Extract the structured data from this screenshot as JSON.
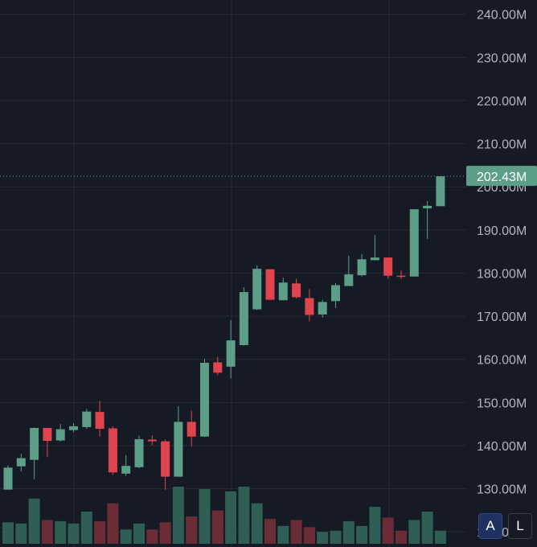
{
  "chart_data": {
    "type": "candlestick",
    "y_axis": {
      "ticks": [
        "120.00M",
        "130.00M",
        "140.00M",
        "150.00M",
        "160.00M",
        "170.00M",
        "180.00M",
        "190.00M",
        "200.00M",
        "210.00M",
        "220.00M",
        "230.00M",
        "240.00M"
      ],
      "ylim": [
        116.5,
        243.3
      ],
      "unit": "M"
    },
    "last_price_label": "202.43M",
    "last_price": 202.43,
    "colors": {
      "up": "#5c9e87",
      "down": "#e0454f",
      "up_volume": "#2f5e55",
      "down_volume": "#6a2d38",
      "background": "#161a25",
      "grid": "#262a35",
      "last_price_line": "#5c9e87"
    },
    "candles": [
      {
        "o": 129.8,
        "h": 135.4,
        "l": 129.8,
        "c": 134.9
      },
      {
        "o": 135.2,
        "h": 138.1,
        "l": 134.0,
        "c": 137.1
      },
      {
        "o": 136.7,
        "h": 144.2,
        "l": 132.2,
        "c": 144.1
      },
      {
        "o": 144.1,
        "h": 144.1,
        "l": 137.4,
        "c": 141.1
      },
      {
        "o": 141.2,
        "h": 145.0,
        "l": 140.9,
        "c": 143.8
      },
      {
        "o": 143.6,
        "h": 145.2,
        "l": 143.1,
        "c": 144.5
      },
      {
        "o": 144.3,
        "h": 148.5,
        "l": 143.9,
        "c": 147.9
      },
      {
        "o": 147.8,
        "h": 150.4,
        "l": 142.1,
        "c": 143.9
      },
      {
        "o": 144.0,
        "h": 144.5,
        "l": 133.2,
        "c": 133.8
      },
      {
        "o": 133.5,
        "h": 137.8,
        "l": 133.0,
        "c": 135.3
      },
      {
        "o": 135.0,
        "h": 142.3,
        "l": 134.8,
        "c": 141.5
      },
      {
        "o": 141.4,
        "h": 142.4,
        "l": 140.1,
        "c": 141.0
      },
      {
        "o": 141.0,
        "h": 141.4,
        "l": 129.8,
        "c": 132.8
      },
      {
        "o": 132.8,
        "h": 149.1,
        "l": 132.8,
        "c": 145.5
      },
      {
        "o": 145.5,
        "h": 148.1,
        "l": 139.8,
        "c": 142.1
      },
      {
        "o": 142.1,
        "h": 160.1,
        "l": 142.0,
        "c": 159.2
      },
      {
        "o": 159.3,
        "h": 160.6,
        "l": 156.3,
        "c": 156.9
      },
      {
        "o": 158.3,
        "h": 169.1,
        "l": 155.6,
        "c": 164.4
      },
      {
        "o": 163.3,
        "h": 176.7,
        "l": 163.2,
        "c": 175.6
      },
      {
        "o": 171.6,
        "h": 181.8,
        "l": 171.4,
        "c": 181.0
      },
      {
        "o": 180.9,
        "h": 180.9,
        "l": 173.8,
        "c": 173.8
      },
      {
        "o": 173.7,
        "h": 178.9,
        "l": 173.7,
        "c": 177.8
      },
      {
        "o": 177.6,
        "h": 178.7,
        "l": 174.1,
        "c": 174.4
      },
      {
        "o": 174.2,
        "h": 176.3,
        "l": 168.8,
        "c": 170.3
      },
      {
        "o": 170.4,
        "h": 173.8,
        "l": 169.7,
        "c": 173.3
      },
      {
        "o": 173.5,
        "h": 177.7,
        "l": 171.9,
        "c": 177.2
      },
      {
        "o": 177.0,
        "h": 184.0,
        "l": 177.0,
        "c": 179.7
      },
      {
        "o": 179.5,
        "h": 184.4,
        "l": 179.2,
        "c": 183.2
      },
      {
        "o": 183.0,
        "h": 188.8,
        "l": 182.9,
        "c": 183.6
      },
      {
        "o": 183.6,
        "h": 183.6,
        "l": 178.7,
        "c": 179.4
      },
      {
        "o": 179.4,
        "h": 180.6,
        "l": 178.6,
        "c": 179.2
      },
      {
        "o": 179.2,
        "h": 194.8,
        "l": 179.2,
        "c": 194.8
      },
      {
        "o": 195.0,
        "h": 196.7,
        "l": 187.9,
        "c": 195.6
      },
      {
        "o": 195.5,
        "h": 202.43,
        "l": 195.5,
        "c": 202.43
      }
    ],
    "volume": [
      18,
      17,
      38,
      20,
      19,
      17,
      27,
      19,
      34,
      12,
      17,
      12,
      18,
      48,
      23,
      46,
      28,
      44,
      48,
      34,
      21,
      15,
      20,
      14,
      10,
      11,
      19,
      15,
      31,
      22,
      11,
      20,
      27,
      11
    ],
    "grid": true
  },
  "controls": {
    "auto_scale_label": "A",
    "log_scale_label": "L"
  }
}
